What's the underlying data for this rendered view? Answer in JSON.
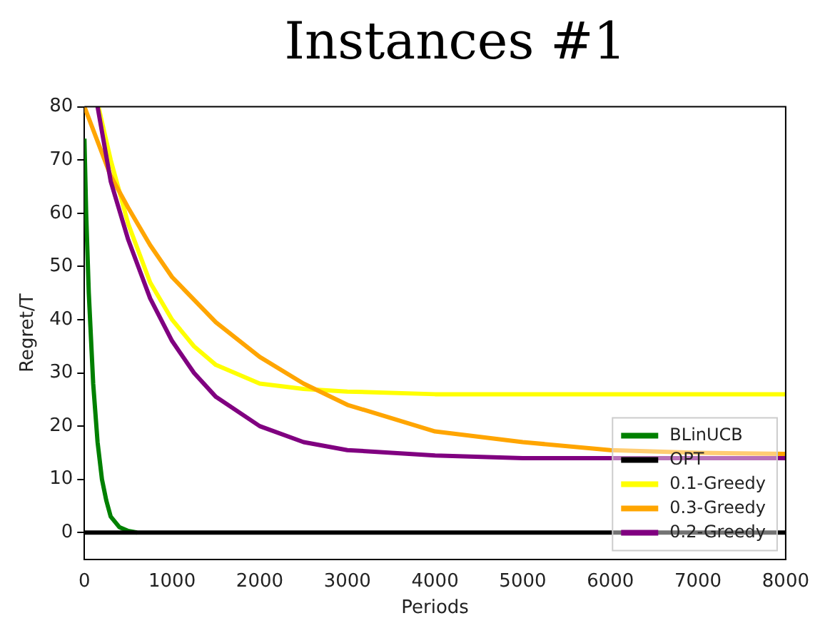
{
  "chart_data": {
    "type": "line",
    "title": "Instances #1",
    "xlabel": "Periods",
    "ylabel": "Regret/T",
    "xlim": [
      0,
      8000
    ],
    "xticks": [
      0,
      1000,
      2000,
      3000,
      4000,
      5000,
      6000,
      7000,
      8000
    ],
    "ylim": [
      -5,
      80
    ],
    "yticks": [
      0,
      10,
      20,
      30,
      40,
      50,
      60,
      70,
      80
    ],
    "grid": false,
    "legend": "bottom right",
    "marker": "none",
    "line_style": "solid",
    "series": [
      {
        "name": "BLinUCB",
        "color": "#008000",
        "x": [
          0,
          20,
          50,
          100,
          150,
          200,
          250,
          300,
          400,
          500,
          600
        ],
        "values": [
          74,
          60,
          45,
          28,
          17,
          10,
          6,
          3,
          1,
          0.3,
          0
        ]
      },
      {
        "name": "OPT",
        "color": "#000000",
        "x": [
          0,
          8000
        ],
        "values": [
          0,
          0
        ]
      },
      {
        "name": "0.1-Greedy",
        "color": "#ffff00",
        "x": [
          160,
          300,
          500,
          750,
          1000,
          1250,
          1500,
          2000,
          2500,
          3000,
          4000,
          8000
        ],
        "values": [
          80,
          70,
          58,
          47,
          40,
          35,
          31.5,
          28,
          27,
          26.5,
          26,
          26
        ]
      },
      {
        "name": "0.3-Greedy",
        "color": "#ffa500",
        "x": [
          0,
          300,
          500,
          750,
          1000,
          1500,
          2000,
          2500,
          3000,
          4000,
          5000,
          6000,
          7000,
          8000
        ],
        "values": [
          80,
          67,
          61,
          54,
          48,
          39.5,
          33,
          28,
          24,
          19,
          17,
          15.5,
          15,
          14.8
        ]
      },
      {
        "name": "0.2-Greedy",
        "color": "#800080",
        "x": [
          150,
          300,
          500,
          750,
          1000,
          1250,
          1500,
          2000,
          2500,
          3000,
          4000,
          5000,
          8000
        ],
        "values": [
          80,
          66,
          55,
          44,
          36,
          30,
          25.5,
          20,
          17,
          15.5,
          14.5,
          14,
          14
        ]
      }
    ]
  }
}
